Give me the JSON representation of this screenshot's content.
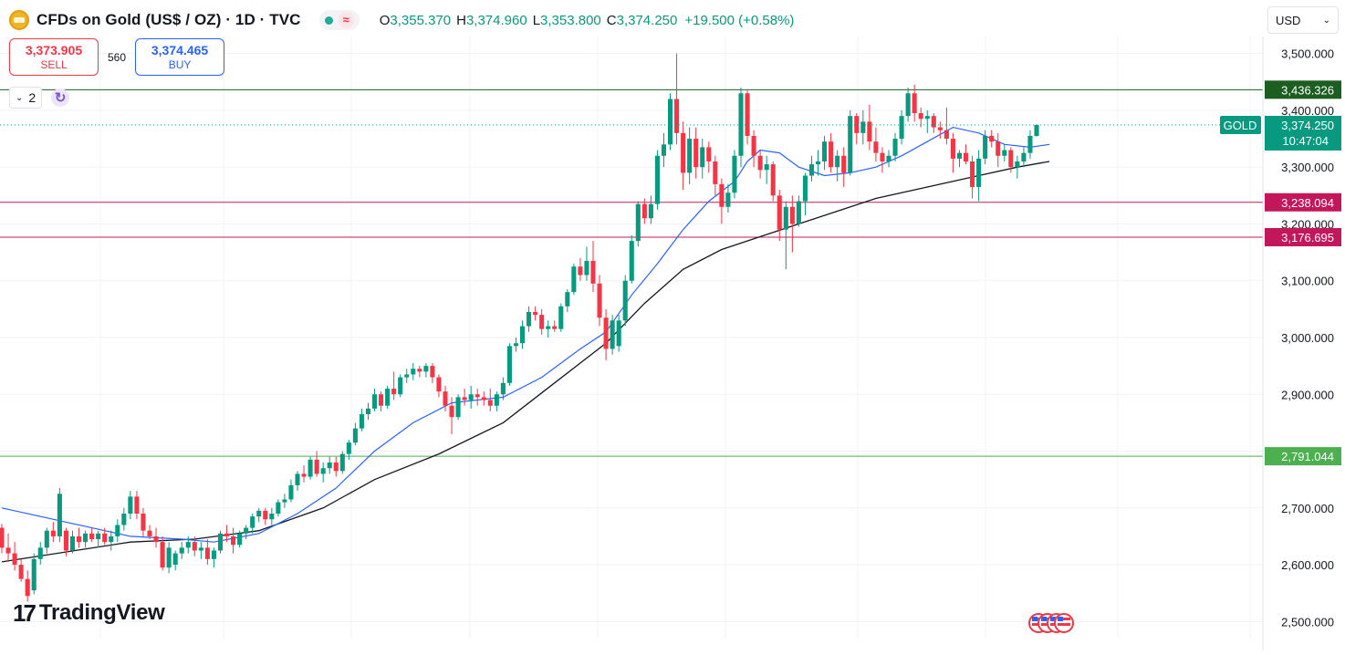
{
  "header": {
    "title": "CFDs on Gold (US$ / OZ) · 1D · TVC",
    "status_wave": "≈",
    "ohlc": {
      "o_label": "O",
      "o": "3,355.370",
      "h_label": "H",
      "h": "3,374.960",
      "l_label": "L",
      "l": "3,353.800",
      "c_label": "C",
      "c": "3,374.250",
      "change": "+19.500 (+0.58%)"
    }
  },
  "trade": {
    "sell_price": "3,373.905",
    "sell_label": "SELL",
    "spread": "560",
    "buy_price": "3,374.465",
    "buy_label": "BUY"
  },
  "indicators": {
    "count": "2"
  },
  "currency": {
    "label": "USD"
  },
  "logo": {
    "mark": "17",
    "text": "TradingView"
  },
  "colors": {
    "up": "#089981",
    "down": "#f23645",
    "ma_fast": "#2962ff",
    "ma_slow": "#131722",
    "level_green_dark": "#1b5e20",
    "level_magenta": "#c2185b",
    "level_green": "#4caf50"
  },
  "chart_data": {
    "type": "candlestick",
    "symbol_badge": "GOLD",
    "last_price": "3,374.250",
    "countdown": "10:47:04",
    "ylim": [
      2470,
      3530
    ],
    "yticks": [
      2500,
      2600,
      2700,
      2800,
      2900,
      3000,
      3100,
      3200,
      3300,
      3400,
      3500
    ],
    "ytick_labels": [
      "2,500.000",
      "2,600.000",
      "2,700.000",
      "2,800.000",
      "2,900.000",
      "3,000.000",
      "3,100.000",
      "3,200.000",
      "3,300.000",
      "3,400.000",
      "3,500.000"
    ],
    "horizontal_levels": [
      {
        "value": 3436.326,
        "label": "3,436.326",
        "color": "#1b5e20"
      },
      {
        "value": 3238.094,
        "label": "3,238.094",
        "color": "#c2185b"
      },
      {
        "value": 3176.695,
        "label": "3,176.695",
        "color": "#c2185b"
      },
      {
        "value": 2791.044,
        "label": "2,791.044",
        "color": "#4caf50"
      }
    ],
    "candles": [
      {
        "o": 2665,
        "h": 2672,
        "l": 2620,
        "c": 2630
      },
      {
        "o": 2630,
        "h": 2655,
        "l": 2605,
        "c": 2620
      },
      {
        "o": 2620,
        "h": 2640,
        "l": 2590,
        "c": 2600
      },
      {
        "o": 2600,
        "h": 2610,
        "l": 2570,
        "c": 2575
      },
      {
        "o": 2575,
        "h": 2590,
        "l": 2535,
        "c": 2545
      },
      {
        "o": 2555,
        "h": 2620,
        "l": 2548,
        "c": 2610
      },
      {
        "o": 2610,
        "h": 2640,
        "l": 2600,
        "c": 2630
      },
      {
        "o": 2630,
        "h": 2665,
        "l": 2620,
        "c": 2660
      },
      {
        "o": 2660,
        "h": 2675,
        "l": 2640,
        "c": 2650
      },
      {
        "o": 2650,
        "h": 2735,
        "l": 2640,
        "c": 2725
      },
      {
        "o": 2660,
        "h": 2665,
        "l": 2615,
        "c": 2625
      },
      {
        "o": 2625,
        "h": 2660,
        "l": 2620,
        "c": 2650
      },
      {
        "o": 2650,
        "h": 2665,
        "l": 2630,
        "c": 2640
      },
      {
        "o": 2640,
        "h": 2660,
        "l": 2630,
        "c": 2655
      },
      {
        "o": 2655,
        "h": 2665,
        "l": 2640,
        "c": 2645
      },
      {
        "o": 2645,
        "h": 2660,
        "l": 2630,
        "c": 2655
      },
      {
        "o": 2655,
        "h": 2665,
        "l": 2635,
        "c": 2640
      },
      {
        "o": 2640,
        "h": 2660,
        "l": 2625,
        "c": 2650
      },
      {
        "o": 2650,
        "h": 2680,
        "l": 2640,
        "c": 2670
      },
      {
        "o": 2670,
        "h": 2700,
        "l": 2660,
        "c": 2690
      },
      {
        "o": 2690,
        "h": 2730,
        "l": 2680,
        "c": 2720
      },
      {
        "o": 2720,
        "h": 2730,
        "l": 2680,
        "c": 2690
      },
      {
        "o": 2690,
        "h": 2700,
        "l": 2650,
        "c": 2660
      },
      {
        "o": 2660,
        "h": 2670,
        "l": 2645,
        "c": 2650
      },
      {
        "o": 2650,
        "h": 2665,
        "l": 2630,
        "c": 2640
      },
      {
        "o": 2640,
        "h": 2650,
        "l": 2590,
        "c": 2595
      },
      {
        "o": 2595,
        "h": 2640,
        "l": 2585,
        "c": 2630
      },
      {
        "o": 2600,
        "h": 2625,
        "l": 2590,
        "c": 2620
      },
      {
        "o": 2620,
        "h": 2640,
        "l": 2610,
        "c": 2630
      },
      {
        "o": 2630,
        "h": 2650,
        "l": 2620,
        "c": 2640
      },
      {
        "o": 2640,
        "h": 2650,
        "l": 2615,
        "c": 2625
      },
      {
        "o": 2625,
        "h": 2640,
        "l": 2610,
        "c": 2630
      },
      {
        "o": 2630,
        "h": 2645,
        "l": 2600,
        "c": 2610
      },
      {
        "o": 2610,
        "h": 2630,
        "l": 2595,
        "c": 2625
      },
      {
        "o": 2625,
        "h": 2660,
        "l": 2620,
        "c": 2655
      },
      {
        "o": 2655,
        "h": 2670,
        "l": 2640,
        "c": 2650
      },
      {
        "o": 2650,
        "h": 2665,
        "l": 2620,
        "c": 2635
      },
      {
        "o": 2635,
        "h": 2660,
        "l": 2630,
        "c": 2655
      },
      {
        "o": 2655,
        "h": 2670,
        "l": 2645,
        "c": 2665
      },
      {
        "o": 2665,
        "h": 2690,
        "l": 2655,
        "c": 2685
      },
      {
        "o": 2685,
        "h": 2700,
        "l": 2675,
        "c": 2695
      },
      {
        "o": 2695,
        "h": 2700,
        "l": 2670,
        "c": 2680
      },
      {
        "o": 2680,
        "h": 2700,
        "l": 2670,
        "c": 2690
      },
      {
        "o": 2690,
        "h": 2715,
        "l": 2685,
        "c": 2710
      },
      {
        "o": 2710,
        "h": 2725,
        "l": 2700,
        "c": 2715
      },
      {
        "o": 2715,
        "h": 2750,
        "l": 2710,
        "c": 2740
      },
      {
        "o": 2740,
        "h": 2765,
        "l": 2730,
        "c": 2760
      },
      {
        "o": 2760,
        "h": 2775,
        "l": 2745,
        "c": 2755
      },
      {
        "o": 2755,
        "h": 2790,
        "l": 2750,
        "c": 2785
      },
      {
        "o": 2785,
        "h": 2800,
        "l": 2755,
        "c": 2760
      },
      {
        "o": 2760,
        "h": 2780,
        "l": 2745,
        "c": 2770
      },
      {
        "o": 2770,
        "h": 2790,
        "l": 2760,
        "c": 2780
      },
      {
        "o": 2780,
        "h": 2790,
        "l": 2755,
        "c": 2765
      },
      {
        "o": 2765,
        "h": 2800,
        "l": 2760,
        "c": 2795
      },
      {
        "o": 2795,
        "h": 2820,
        "l": 2785,
        "c": 2815
      },
      {
        "o": 2815,
        "h": 2850,
        "l": 2810,
        "c": 2840
      },
      {
        "o": 2840,
        "h": 2875,
        "l": 2835,
        "c": 2865
      },
      {
        "o": 2865,
        "h": 2885,
        "l": 2855,
        "c": 2875
      },
      {
        "o": 2875,
        "h": 2910,
        "l": 2870,
        "c": 2900
      },
      {
        "o": 2900,
        "h": 2905,
        "l": 2870,
        "c": 2880
      },
      {
        "o": 2880,
        "h": 2915,
        "l": 2875,
        "c": 2910
      },
      {
        "o": 2910,
        "h": 2940,
        "l": 2890,
        "c": 2900
      },
      {
        "o": 2900,
        "h": 2935,
        "l": 2895,
        "c": 2930
      },
      {
        "o": 2930,
        "h": 2945,
        "l": 2920,
        "c": 2935
      },
      {
        "o": 2935,
        "h": 2955,
        "l": 2925,
        "c": 2945
      },
      {
        "o": 2945,
        "h": 2950,
        "l": 2930,
        "c": 2940
      },
      {
        "o": 2940,
        "h": 2955,
        "l": 2930,
        "c": 2950
      },
      {
        "o": 2950,
        "h": 2955,
        "l": 2920,
        "c": 2930
      },
      {
        "o": 2930,
        "h": 2935,
        "l": 2895,
        "c": 2905
      },
      {
        "o": 2905,
        "h": 2915,
        "l": 2870,
        "c": 2880
      },
      {
        "o": 2880,
        "h": 2895,
        "l": 2830,
        "c": 2860
      },
      {
        "o": 2860,
        "h": 2900,
        "l": 2855,
        "c": 2895
      },
      {
        "o": 2895,
        "h": 2910,
        "l": 2880,
        "c": 2890
      },
      {
        "o": 2890,
        "h": 2915,
        "l": 2875,
        "c": 2900
      },
      {
        "o": 2900,
        "h": 2910,
        "l": 2880,
        "c": 2895
      },
      {
        "o": 2895,
        "h": 2905,
        "l": 2880,
        "c": 2890
      },
      {
        "o": 2890,
        "h": 2910,
        "l": 2870,
        "c": 2880
      },
      {
        "o": 2880,
        "h": 2905,
        "l": 2870,
        "c": 2900
      },
      {
        "o": 2900,
        "h": 2930,
        "l": 2890,
        "c": 2920
      },
      {
        "o": 2920,
        "h": 2990,
        "l": 2915,
        "c": 2985
      },
      {
        "o": 2985,
        "h": 3000,
        "l": 2975,
        "c": 2990
      },
      {
        "o": 2990,
        "h": 3030,
        "l": 2980,
        "c": 3020
      },
      {
        "o": 3020,
        "h": 3055,
        "l": 3010,
        "c": 3045
      },
      {
        "o": 3045,
        "h": 3055,
        "l": 3030,
        "c": 3040
      },
      {
        "o": 3040,
        "h": 3050,
        "l": 3005,
        "c": 3015
      },
      {
        "o": 3015,
        "h": 3030,
        "l": 3000,
        "c": 3020
      },
      {
        "o": 3020,
        "h": 3030,
        "l": 3010,
        "c": 3015
      },
      {
        "o": 3015,
        "h": 3060,
        "l": 3010,
        "c": 3055
      },
      {
        "o": 3055,
        "h": 3085,
        "l": 3045,
        "c": 3080
      },
      {
        "o": 3080,
        "h": 3130,
        "l": 3075,
        "c": 3125
      },
      {
        "o": 3125,
        "h": 3140,
        "l": 3100,
        "c": 3110
      },
      {
        "o": 3110,
        "h": 3160,
        "l": 3100,
        "c": 3135
      },
      {
        "o": 3135,
        "h": 3170,
        "l": 3080,
        "c": 3095
      },
      {
        "o": 3095,
        "h": 3110,
        "l": 3020,
        "c": 3035
      },
      {
        "o": 3035,
        "h": 3050,
        "l": 2960,
        "c": 2980
      },
      {
        "o": 2980,
        "h": 3040,
        "l": 2970,
        "c": 3030
      },
      {
        "o": 2985,
        "h": 3040,
        "l": 2975,
        "c": 3030
      },
      {
        "o": 3030,
        "h": 3110,
        "l": 3020,
        "c": 3100
      },
      {
        "o": 3100,
        "h": 3180,
        "l": 3095,
        "c": 3170
      },
      {
        "o": 3170,
        "h": 3240,
        "l": 3160,
        "c": 3235
      },
      {
        "o": 3235,
        "h": 3245,
        "l": 3200,
        "c": 3210
      },
      {
        "o": 3210,
        "h": 3250,
        "l": 3200,
        "c": 3235
      },
      {
        "o": 3235,
        "h": 3330,
        "l": 3225,
        "c": 3320
      },
      {
        "o": 3320,
        "h": 3360,
        "l": 3300,
        "c": 3340
      },
      {
        "o": 3340,
        "h": 3430,
        "l": 3330,
        "c": 3420
      },
      {
        "o": 3420,
        "h": 3500,
        "l": 3340,
        "c": 3360
      },
      {
        "o": 3360,
        "h": 3380,
        "l": 3260,
        "c": 3290
      },
      {
        "o": 3290,
        "h": 3370,
        "l": 3270,
        "c": 3350
      },
      {
        "o": 3350,
        "h": 3370,
        "l": 3280,
        "c": 3300
      },
      {
        "o": 3300,
        "h": 3350,
        "l": 3280,
        "c": 3335
      },
      {
        "o": 3335,
        "h": 3345,
        "l": 3290,
        "c": 3310
      },
      {
        "o": 3310,
        "h": 3320,
        "l": 3250,
        "c": 3270
      },
      {
        "o": 3270,
        "h": 3280,
        "l": 3200,
        "c": 3230
      },
      {
        "o": 3230,
        "h": 3270,
        "l": 3220,
        "c": 3255
      },
      {
        "o": 3255,
        "h": 3330,
        "l": 3245,
        "c": 3320
      },
      {
        "o": 3320,
        "h": 3440,
        "l": 3300,
        "c": 3430
      },
      {
        "o": 3430,
        "h": 3435,
        "l": 3340,
        "c": 3355
      },
      {
        "o": 3355,
        "h": 3365,
        "l": 3300,
        "c": 3320
      },
      {
        "o": 3320,
        "h": 3330,
        "l": 3280,
        "c": 3295
      },
      {
        "o": 3295,
        "h": 3320,
        "l": 3270,
        "c": 3305
      },
      {
        "o": 3305,
        "h": 3310,
        "l": 3240,
        "c": 3250
      },
      {
        "o": 3250,
        "h": 3260,
        "l": 3170,
        "c": 3190
      },
      {
        "o": 3190,
        "h": 3240,
        "l": 3120,
        "c": 3230
      },
      {
        "o": 3230,
        "h": 3250,
        "l": 3150,
        "c": 3200
      },
      {
        "o": 3200,
        "h": 3250,
        "l": 3195,
        "c": 3240
      },
      {
        "o": 3240,
        "h": 3290,
        "l": 3215,
        "c": 3285
      },
      {
        "o": 3285,
        "h": 3320,
        "l": 3275,
        "c": 3305
      },
      {
        "o": 3305,
        "h": 3330,
        "l": 3285,
        "c": 3310
      },
      {
        "o": 3310,
        "h": 3355,
        "l": 3295,
        "c": 3345
      },
      {
        "o": 3345,
        "h": 3360,
        "l": 3290,
        "c": 3300
      },
      {
        "o": 3300,
        "h": 3330,
        "l": 3275,
        "c": 3320
      },
      {
        "o": 3320,
        "h": 3335,
        "l": 3265,
        "c": 3290
      },
      {
        "o": 3290,
        "h": 3400,
        "l": 3285,
        "c": 3390
      },
      {
        "o": 3390,
        "h": 3395,
        "l": 3340,
        "c": 3360
      },
      {
        "o": 3360,
        "h": 3400,
        "l": 3340,
        "c": 3380
      },
      {
        "o": 3380,
        "h": 3410,
        "l": 3330,
        "c": 3345
      },
      {
        "o": 3345,
        "h": 3370,
        "l": 3310,
        "c": 3325
      },
      {
        "o": 3325,
        "h": 3335,
        "l": 3290,
        "c": 3310
      },
      {
        "o": 3310,
        "h": 3330,
        "l": 3300,
        "c": 3320
      },
      {
        "o": 3320,
        "h": 3360,
        "l": 3310,
        "c": 3350
      },
      {
        "o": 3350,
        "h": 3400,
        "l": 3340,
        "c": 3390
      },
      {
        "o": 3390,
        "h": 3440,
        "l": 3380,
        "c": 3430
      },
      {
        "o": 3430,
        "h": 3445,
        "l": 3380,
        "c": 3395
      },
      {
        "o": 3395,
        "h": 3405,
        "l": 3370,
        "c": 3385
      },
      {
        "o": 3385,
        "h": 3400,
        "l": 3360,
        "c": 3390
      },
      {
        "o": 3390,
        "h": 3395,
        "l": 3360,
        "c": 3370
      },
      {
        "o": 3370,
        "h": 3380,
        "l": 3350,
        "c": 3365
      },
      {
        "o": 3365,
        "h": 3405,
        "l": 3340,
        "c": 3350
      },
      {
        "o": 3350,
        "h": 3360,
        "l": 3290,
        "c": 3315
      },
      {
        "o": 3315,
        "h": 3330,
        "l": 3300,
        "c": 3325
      },
      {
        "o": 3325,
        "h": 3340,
        "l": 3305,
        "c": 3310
      },
      {
        "o": 3310,
        "h": 3320,
        "l": 3245,
        "c": 3265
      },
      {
        "o": 3265,
        "h": 3330,
        "l": 3240,
        "c": 3315
      },
      {
        "o": 3315,
        "h": 3365,
        "l": 3305,
        "c": 3355
      },
      {
        "o": 3355,
        "h": 3365,
        "l": 3335,
        "c": 3345
      },
      {
        "o": 3345,
        "h": 3360,
        "l": 3300,
        "c": 3320
      },
      {
        "o": 3320,
        "h": 3340,
        "l": 3310,
        "c": 3330
      },
      {
        "o": 3330,
        "h": 3335,
        "l": 3290,
        "c": 3300
      },
      {
        "o": 3300,
        "h": 3320,
        "l": 3280,
        "c": 3310
      },
      {
        "o": 3310,
        "h": 3335,
        "l": 3300,
        "c": 3325
      },
      {
        "o": 3325,
        "h": 3365,
        "l": 3315,
        "c": 3355
      },
      {
        "o": 3355,
        "h": 3375,
        "l": 3353.8,
        "c": 3374.25
      }
    ],
    "ma_fast": [
      [
        0,
        2700
      ],
      [
        14,
        2665
      ],
      [
        20,
        2650
      ],
      [
        28,
        2645
      ],
      [
        33,
        2640
      ],
      [
        40,
        2655
      ],
      [
        46,
        2690
      ],
      [
        52,
        2735
      ],
      [
        58,
        2800
      ],
      [
        64,
        2850
      ],
      [
        70,
        2885
      ],
      [
        78,
        2895
      ],
      [
        84,
        2930
      ],
      [
        90,
        2980
      ],
      [
        94,
        3010
      ],
      [
        98,
        3075
      ],
      [
        102,
        3130
      ],
      [
        106,
        3190
      ],
      [
        110,
        3240
      ],
      [
        114,
        3275
      ],
      [
        116,
        3310
      ],
      [
        118,
        3330
      ],
      [
        121,
        3325
      ],
      [
        124,
        3300
      ],
      [
        128,
        3285
      ],
      [
        132,
        3290
      ],
      [
        136,
        3300
      ],
      [
        140,
        3320
      ],
      [
        144,
        3345
      ],
      [
        148,
        3370
      ],
      [
        152,
        3360
      ],
      [
        156,
        3340
      ],
      [
        160,
        3335
      ],
      [
        163,
        3340
      ]
    ],
    "ma_slow": [
      [
        0,
        2605
      ],
      [
        20,
        2640
      ],
      [
        30,
        2645
      ],
      [
        40,
        2660
      ],
      [
        50,
        2700
      ],
      [
        58,
        2750
      ],
      [
        68,
        2795
      ],
      [
        78,
        2850
      ],
      [
        86,
        2920
      ],
      [
        94,
        2990
      ],
      [
        100,
        3060
      ],
      [
        106,
        3120
      ],
      [
        112,
        3155
      ],
      [
        120,
        3185
      ],
      [
        128,
        3215
      ],
      [
        136,
        3245
      ],
      [
        144,
        3265
      ],
      [
        152,
        3285
      ],
      [
        158,
        3300
      ],
      [
        163,
        3310
      ]
    ]
  }
}
